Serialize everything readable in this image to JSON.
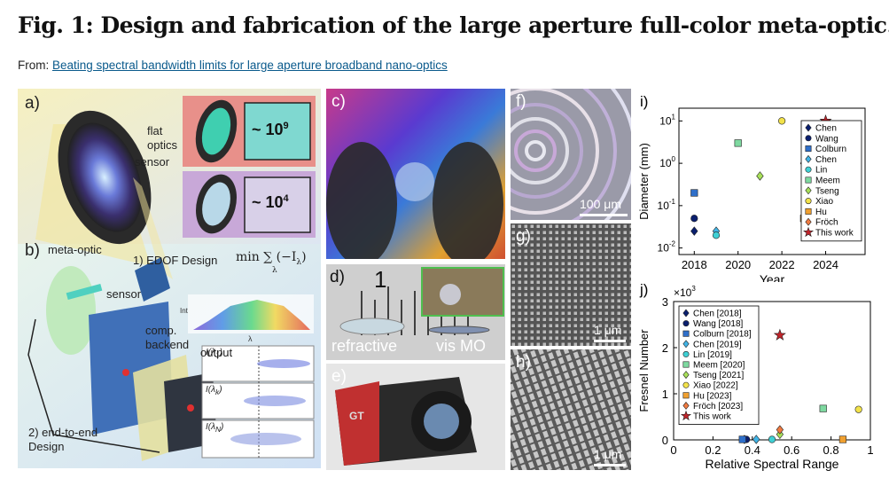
{
  "header": {
    "title": "Fig. 1: Design and fabrication of the large aperture full-color meta-optic.",
    "from_label": "From: ",
    "from_link": "Beating spectral bandwidth limits for large aperture broadband nano-optics"
  },
  "panel_ab": {
    "label_a": "a)",
    "label_b": "b)",
    "flat_optics": [
      "flat",
      "optics"
    ],
    "sensor": "sensor",
    "factor_1": "~ 10",
    "factor_1_exp": "9",
    "factor_2": "~ 10",
    "factor_2_exp": "4",
    "meta_optic": "meta-optic",
    "sensor_b": "sensor",
    "comp_backend": [
      "comp.",
      "backend"
    ],
    "output": "output",
    "edof": "1) EDOF Design",
    "formula": "min ∑ (−I",
    "formula_sum_sub": "λ",
    "formula_term_sub": "λ",
    "spectrum_ylabel": "Int",
    "spectrum_xlabel": "λ",
    "psf_labels": [
      "I(λ",
      "I(λ",
      "I(λ"
    ],
    "psf_subs": [
      "1",
      "k",
      "N"
    ],
    "end_to_end": [
      "2) end-to-end",
      "Design"
    ]
  },
  "panel_c": {
    "label": "c)"
  },
  "panel_d": {
    "label": "d)",
    "refractive": "refractive",
    "vis_mo": "vis MO",
    "ruler": "1"
  },
  "panel_e": {
    "label": "e)",
    "camera_mark": "GT"
  },
  "panel_f": {
    "label": "f)",
    "scale": "100 μm"
  },
  "panel_g": {
    "label": "g)",
    "scale": "1 μm"
  },
  "panel_h": {
    "label": "h)",
    "scale": "1 μm"
  },
  "chart_i": {
    "label": "i)",
    "type": "scatter",
    "ylabel": "Diameter (mm)",
    "xlabel": "Year",
    "y_scale": "log",
    "ylim": [
      0.01,
      10
    ],
    "xlim": [
      2017.3,
      2025.8
    ],
    "xticks": [
      "2018",
      "2020",
      "2022",
      "2024"
    ],
    "yticks": [
      {
        "v": 10,
        "base": "10",
        "exp": "1"
      },
      {
        "v": 1,
        "base": "10",
        "exp": "0"
      },
      {
        "v": 0.1,
        "base": "10",
        "exp": "-1"
      },
      {
        "v": 0.01,
        "base": "10",
        "exp": "-2"
      }
    ],
    "legend_position": "top-right",
    "series": [
      {
        "name": "Chen",
        "marker": "diamond",
        "color": "#0a1f6e",
        "points": [
          [
            2018,
            0.025
          ]
        ]
      },
      {
        "name": "Wang",
        "marker": "circle",
        "color": "#0a1f6e",
        "points": [
          [
            2018,
            0.05
          ]
        ]
      },
      {
        "name": "Colburn",
        "marker": "square",
        "color": "#2f6fc9",
        "points": [
          [
            2018,
            0.2
          ]
        ]
      },
      {
        "name": "Chen",
        "marker": "diamond",
        "color": "#41b4e6",
        "points": [
          [
            2019,
            0.025
          ]
        ]
      },
      {
        "name": "Lin",
        "marker": "circle",
        "color": "#3fd0d4",
        "points": [
          [
            2019,
            0.02
          ]
        ]
      },
      {
        "name": "Meem",
        "marker": "square",
        "color": "#7ed9a0",
        "points": [
          [
            2020,
            3
          ]
        ]
      },
      {
        "name": "Tseng",
        "marker": "diamond",
        "color": "#a8e05a",
        "points": [
          [
            2021,
            0.5
          ]
        ]
      },
      {
        "name": "Xiao",
        "marker": "circle",
        "color": "#f2e24a",
        "points": [
          [
            2022,
            10
          ]
        ]
      },
      {
        "name": "Hu",
        "marker": "square",
        "color": "#f0a030",
        "points": [
          [
            2023,
            0.05
          ]
        ]
      },
      {
        "name": "Fröch",
        "marker": "diamond",
        "color": "#f07a40",
        "points": [
          [
            2023,
            1
          ]
        ]
      },
      {
        "name": "This work",
        "marker": "star",
        "color": "#c0242a",
        "points": [
          [
            2024,
            10
          ]
        ]
      }
    ]
  },
  "chart_j": {
    "label": "j)",
    "type": "scatter",
    "ylabel": "Fresnel Number",
    "xlabel": "Relative Spectral Range",
    "multiplier_base": "×10",
    "multiplier_exp": "3",
    "xlim": [
      0,
      1
    ],
    "ylim": [
      0,
      3
    ],
    "xticks": [
      "0",
      "0.2",
      "0.4",
      "0.6",
      "0.8",
      "1"
    ],
    "yticks": [
      "0",
      "1",
      "2",
      "3"
    ],
    "legend_position": "top-left",
    "series": [
      {
        "name": "Chen [2018]",
        "marker": "diamond",
        "color": "#0a1f6e",
        "points": [
          [
            0.36,
            0.01
          ]
        ]
      },
      {
        "name": "Wang [2018]",
        "marker": "circle",
        "color": "#0a1f6e",
        "points": [
          [
            0.37,
            0.01
          ]
        ]
      },
      {
        "name": "Colburn [2018]",
        "marker": "square",
        "color": "#2f6fc9",
        "points": [
          [
            0.35,
            0.01
          ]
        ]
      },
      {
        "name": "Chen [2019]",
        "marker": "diamond",
        "color": "#41b4e6",
        "points": [
          [
            0.42,
            0.01
          ]
        ]
      },
      {
        "name": "Lin [2019]",
        "marker": "circle",
        "color": "#3fd0d4",
        "points": [
          [
            0.5,
            0.01
          ]
        ]
      },
      {
        "name": "Meem [2020]",
        "marker": "square",
        "color": "#7ed9a0",
        "points": [
          [
            0.76,
            0.68
          ]
        ]
      },
      {
        "name": "Tseng [2021]",
        "marker": "diamond",
        "color": "#a8e05a",
        "points": [
          [
            0.54,
            0.12
          ]
        ]
      },
      {
        "name": "Xiao [2022]",
        "marker": "circle",
        "color": "#f2e24a",
        "points": [
          [
            0.94,
            0.66
          ]
        ]
      },
      {
        "name": "Hu [2023]",
        "marker": "square",
        "color": "#f0a030",
        "points": [
          [
            0.86,
            0.01
          ]
        ]
      },
      {
        "name": "Fröch [2023]",
        "marker": "diamond",
        "color": "#f07a40",
        "points": [
          [
            0.54,
            0.22
          ]
        ]
      },
      {
        "name": "This work",
        "marker": "star",
        "color": "#c0242a",
        "points": [
          [
            0.54,
            2.27
          ]
        ]
      }
    ]
  }
}
